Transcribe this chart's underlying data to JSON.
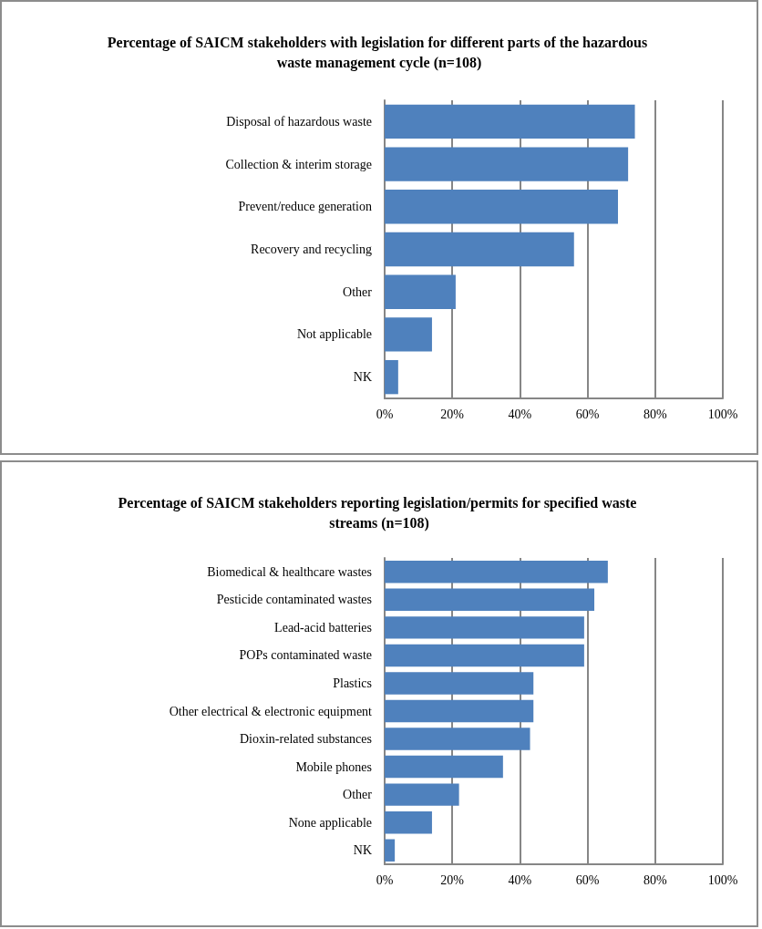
{
  "chart_data": [
    {
      "type": "bar",
      "orientation": "horizontal",
      "title": "Percentage of SAICM stakeholders with legislation for different parts of the hazardous waste management cycle (n=108)",
      "categories": [
        "Disposal of hazardous waste",
        "Collection & interim storage",
        "Prevent/reduce generation",
        "Recovery and recycling",
        "Other",
        "Not applicable",
        "NK"
      ],
      "values": [
        74,
        72,
        69,
        56,
        21,
        14,
        4
      ],
      "color": "#4f81bd",
      "xlim": [
        0,
        100
      ],
      "xticks": [
        {
          "value": 0,
          "label": "0%"
        },
        {
          "value": 20,
          "label": "20%"
        },
        {
          "value": 40,
          "label": "40%"
        },
        {
          "value": 60,
          "label": "60%"
        },
        {
          "value": 80,
          "label": "80%"
        },
        {
          "value": 100,
          "label": "100%"
        }
      ],
      "grid": "x"
    },
    {
      "type": "bar",
      "orientation": "horizontal",
      "title": "Percentage of SAICM stakeholders reporting legislation/permits for specified waste streams (n=108)",
      "categories": [
        "Biomedical & healthcare wastes",
        "Pesticide contaminated wastes",
        "Lead-acid batteries",
        "POPs contaminated waste",
        "Plastics",
        "Other electrical & electronic equipment",
        "Dioxin-related substances",
        "Mobile phones",
        "Other",
        "None applicable",
        "NK"
      ],
      "values": [
        66,
        62,
        59,
        59,
        44,
        44,
        43,
        35,
        22,
        14,
        3
      ],
      "color": "#4f81bd",
      "xlim": [
        0,
        100
      ],
      "xticks": [
        {
          "value": 0,
          "label": "0%"
        },
        {
          "value": 20,
          "label": "20%"
        },
        {
          "value": 40,
          "label": "40%"
        },
        {
          "value": 60,
          "label": "60%"
        },
        {
          "value": 80,
          "label": "80%"
        },
        {
          "value": 100,
          "label": "100%"
        }
      ],
      "grid": "x"
    }
  ]
}
